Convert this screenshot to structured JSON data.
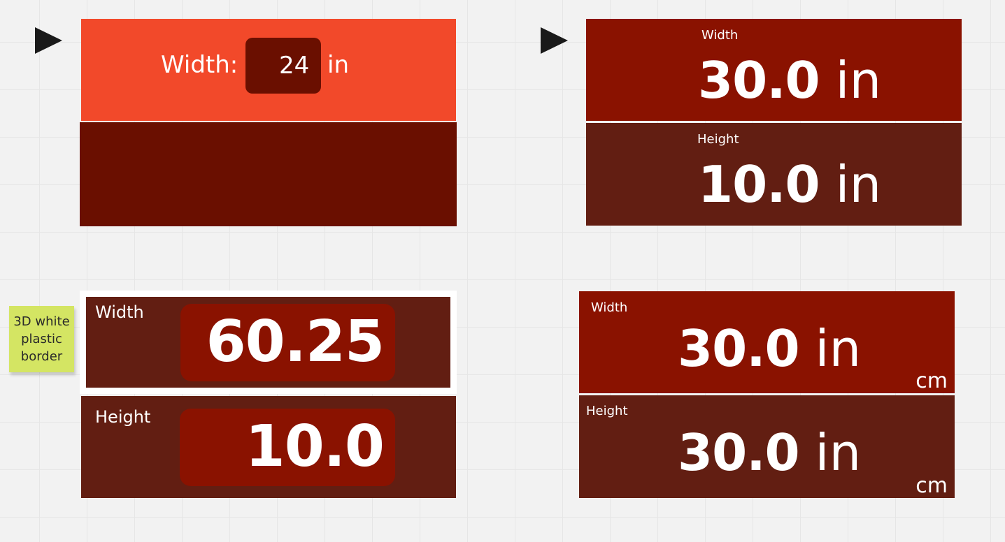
{
  "panel_tl": {
    "width_label": "Width:",
    "width_value": "24",
    "width_unit": "in"
  },
  "panel_tr": {
    "width_label": "Width",
    "width_value": "30.0",
    "width_unit": "in",
    "height_label": "Height",
    "height_value": "10.0",
    "height_unit": "in"
  },
  "panel_bl": {
    "width_label": "Width",
    "width_value": "60.25",
    "height_label": "Height",
    "height_value": "10.0"
  },
  "sticky_note": {
    "lines": [
      "3D white",
      "plastic",
      "border"
    ]
  },
  "panel_br": {
    "width_label": "Width",
    "width_value": "30.0",
    "width_unit": "in",
    "width_alt_unit": "cm",
    "height_label": "Height",
    "height_value": "30.0",
    "height_unit": "in",
    "height_alt_unit": "cm"
  },
  "colors": {
    "orange": "#f2492a",
    "dark_red": "#6a0f00",
    "red": "#8a1200",
    "brown": "#621e12"
  }
}
